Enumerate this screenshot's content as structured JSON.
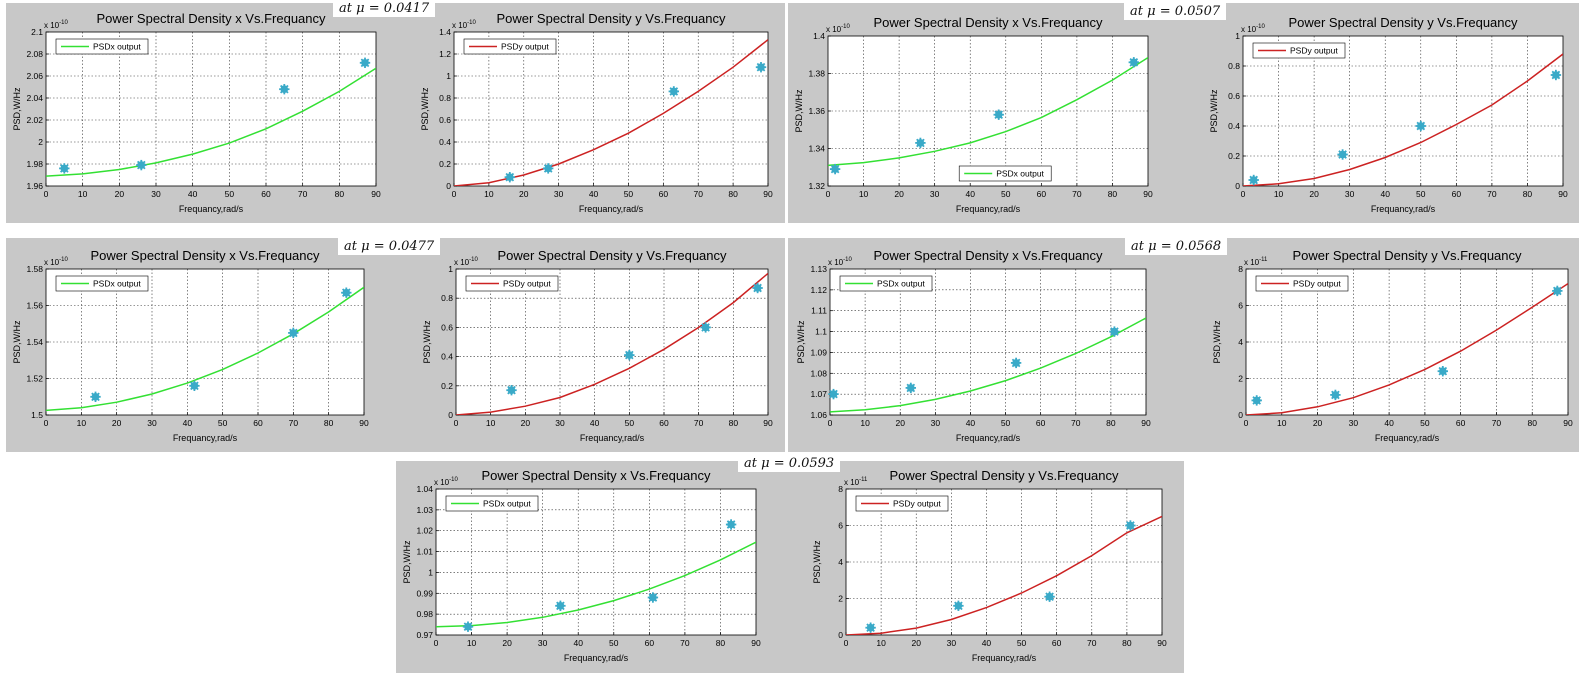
{
  "mu_labels": [
    {
      "text": "at μ = 0.0417"
    },
    {
      "text": "at μ = 0.0507"
    },
    {
      "text": "at μ = 0.0477"
    },
    {
      "text": "at μ = 0.0568"
    },
    {
      "text": "at μ = 0.0593"
    }
  ],
  "chart_data": [
    {
      "type": "line",
      "title": "Power Spectral Density x Vs.Frequancy",
      "xlabel": "Frequancy,rad/s",
      "ylabel": "PSD,W/Hz",
      "exponent": "x 10",
      "exponent_power": "-10",
      "xlim": [
        0,
        90
      ],
      "ylim": [
        1.96,
        2.1
      ],
      "xticks": [
        0,
        10,
        20,
        30,
        40,
        50,
        60,
        70,
        80,
        90
      ],
      "yticks": [
        1.96,
        1.98,
        2,
        2.02,
        2.04,
        2.06,
        2.08,
        2.1
      ],
      "ytick_labels": [
        "1.96",
        "1.98",
        "2",
        "2.02",
        "2.04",
        "2.06",
        "2.08",
        "2.1"
      ],
      "grid": true,
      "legend": {
        "label": "PSDx output",
        "position": "top-left"
      },
      "line_color": "#33e033",
      "marker_color": "#3aaac8",
      "fit": [
        [
          0,
          1.969
        ],
        [
          10,
          1.971
        ],
        [
          20,
          1.975
        ],
        [
          30,
          1.981
        ],
        [
          40,
          1.989
        ],
        [
          50,
          1.999
        ],
        [
          60,
          2.012
        ],
        [
          70,
          2.028
        ],
        [
          80,
          2.046
        ],
        [
          90,
          2.067
        ]
      ],
      "points": [
        [
          5,
          1.976
        ],
        [
          26,
          1.979
        ],
        [
          65,
          2.048
        ],
        [
          87,
          2.072
        ]
      ]
    },
    {
      "type": "line",
      "title": "Power Spectral Density y Vs.Frequancy",
      "xlabel": "Frequancy,rad/s",
      "ylabel": "PSD,W/Hz",
      "exponent": "x 10",
      "exponent_power": "-10",
      "xlim": [
        0,
        90
      ],
      "ylim": [
        0,
        1.4
      ],
      "xticks": [
        0,
        10,
        20,
        30,
        40,
        50,
        60,
        70,
        80,
        90
      ],
      "yticks": [
        0,
        0.2,
        0.4,
        0.6,
        0.8,
        1,
        1.2,
        1.4
      ],
      "ytick_labels": [
        "0",
        "0.2",
        "0.4",
        "0.6",
        "0.8",
        "1",
        "1.2",
        "1.4"
      ],
      "grid": true,
      "legend": {
        "label": "PSDy output",
        "position": "top-left"
      },
      "line_color": "#cc2222",
      "marker_color": "#3aaac8",
      "fit": [
        [
          0,
          0
        ],
        [
          10,
          0.03
        ],
        [
          20,
          0.1
        ],
        [
          30,
          0.2
        ],
        [
          40,
          0.33
        ],
        [
          50,
          0.48
        ],
        [
          60,
          0.66
        ],
        [
          70,
          0.86
        ],
        [
          80,
          1.08
        ],
        [
          90,
          1.33
        ]
      ],
      "points": [
        [
          16,
          0.08
        ],
        [
          27,
          0.16
        ],
        [
          63,
          0.86
        ],
        [
          88,
          1.08
        ]
      ]
    },
    {
      "type": "line",
      "title": "Power Spectral Density x Vs.Frequancy",
      "xlabel": "Frequancy,rad/s",
      "ylabel": "PSD,W/Hz",
      "exponent": "x 10",
      "exponent_power": "-10",
      "xlim": [
        0,
        90
      ],
      "ylim": [
        1.32,
        1.4
      ],
      "xticks": [
        0,
        10,
        20,
        30,
        40,
        50,
        60,
        70,
        80,
        90
      ],
      "yticks": [
        1.32,
        1.34,
        1.36,
        1.38,
        1.4
      ],
      "ytick_labels": [
        "1.32",
        "1.34",
        "1.36",
        "1.38",
        "1.4"
      ],
      "grid": true,
      "legend": {
        "label": "PSDx output",
        "position": "bottom-center"
      },
      "line_color": "#33e033",
      "marker_color": "#3aaac8",
      "fit": [
        [
          0,
          1.331
        ],
        [
          10,
          1.3325
        ],
        [
          20,
          1.335
        ],
        [
          30,
          1.3385
        ],
        [
          40,
          1.343
        ],
        [
          50,
          1.349
        ],
        [
          60,
          1.3565
        ],
        [
          70,
          1.366
        ],
        [
          80,
          1.3765
        ],
        [
          90,
          1.3885
        ]
      ],
      "points": [
        [
          2,
          1.329
        ],
        [
          26,
          1.343
        ],
        [
          48,
          1.358
        ],
        [
          86,
          1.386
        ]
      ]
    },
    {
      "type": "line",
      "title": "Power Spectral Density y Vs.Frequancy",
      "xlabel": "Frequancy,rad/s",
      "ylabel": "PSD,W/Hz",
      "exponent": "x 10",
      "exponent_power": "-10",
      "xlim": [
        0,
        90
      ],
      "ylim": [
        0,
        1
      ],
      "xticks": [
        0,
        10,
        20,
        30,
        40,
        50,
        60,
        70,
        80,
        90
      ],
      "yticks": [
        0,
        0.2,
        0.4,
        0.6,
        0.8,
        1
      ],
      "ytick_labels": [
        "0",
        "0.2",
        "0.4",
        "0.6",
        "0.8",
        "1"
      ],
      "grid": true,
      "legend": {
        "label": "PSDy output",
        "position": "top-left"
      },
      "line_color": "#cc2222",
      "marker_color": "#3aaac8",
      "fit": [
        [
          0,
          0
        ],
        [
          10,
          0.015
        ],
        [
          20,
          0.05
        ],
        [
          30,
          0.11
        ],
        [
          40,
          0.19
        ],
        [
          50,
          0.29
        ],
        [
          60,
          0.41
        ],
        [
          70,
          0.54
        ],
        [
          80,
          0.7
        ],
        [
          90,
          0.88
        ]
      ],
      "points": [
        [
          3,
          0.04
        ],
        [
          28,
          0.21
        ],
        [
          50,
          0.4
        ],
        [
          88,
          0.74
        ]
      ]
    },
    {
      "type": "line",
      "title": "Power Spectral Density x Vs.Frequancy",
      "xlabel": "Frequancy,rad/s",
      "ylabel": "PSD,W/Hz",
      "exponent": "x 10",
      "exponent_power": "-10",
      "xlim": [
        0,
        90
      ],
      "ylim": [
        1.5,
        1.58
      ],
      "xticks": [
        0,
        10,
        20,
        30,
        40,
        50,
        60,
        70,
        80,
        90
      ],
      "yticks": [
        1.5,
        1.52,
        1.54,
        1.56,
        1.58
      ],
      "ytick_labels": [
        "1.5",
        "1.52",
        "1.54",
        "1.56",
        "1.58"
      ],
      "grid": true,
      "legend": {
        "label": "PSDx output",
        "position": "top-left"
      },
      "line_color": "#33e033",
      "marker_color": "#3aaac8",
      "fit": [
        [
          0,
          1.5025
        ],
        [
          10,
          1.504
        ],
        [
          20,
          1.507
        ],
        [
          30,
          1.5115
        ],
        [
          40,
          1.5175
        ],
        [
          50,
          1.525
        ],
        [
          60,
          1.534
        ],
        [
          70,
          1.5445
        ],
        [
          80,
          1.5565
        ],
        [
          90,
          1.57
        ]
      ],
      "points": [
        [
          14,
          1.51
        ],
        [
          42,
          1.516
        ],
        [
          70,
          1.545
        ],
        [
          85,
          1.567
        ]
      ]
    },
    {
      "type": "line",
      "title": "Power Spectral Density y Vs.Frequancy",
      "xlabel": "Frequancy,rad/s",
      "ylabel": "PSD,W/Hz",
      "exponent": "x 10",
      "exponent_power": "-10",
      "xlim": [
        0,
        90
      ],
      "ylim": [
        0,
        1
      ],
      "xticks": [
        0,
        10,
        20,
        30,
        40,
        50,
        60,
        70,
        80,
        90
      ],
      "yticks": [
        0,
        0.2,
        0.4,
        0.6,
        0.8,
        1
      ],
      "ytick_labels": [
        "0",
        "0.2",
        "0.4",
        "0.6",
        "0.8",
        "1"
      ],
      "grid": true,
      "legend": {
        "label": "PSDy output",
        "position": "top-left"
      },
      "line_color": "#cc2222",
      "marker_color": "#3aaac8",
      "fit": [
        [
          0,
          0
        ],
        [
          10,
          0.02
        ],
        [
          20,
          0.06
        ],
        [
          30,
          0.12
        ],
        [
          40,
          0.21
        ],
        [
          50,
          0.32
        ],
        [
          60,
          0.45
        ],
        [
          70,
          0.6
        ],
        [
          80,
          0.77
        ],
        [
          90,
          0.97
        ]
      ],
      "points": [
        [
          16,
          0.17
        ],
        [
          50,
          0.41
        ],
        [
          72,
          0.6
        ],
        [
          87,
          0.87
        ]
      ]
    },
    {
      "type": "line",
      "title": "Power Spectral Density x Vs.Frequancy",
      "xlabel": "Frequancy,rad/s",
      "ylabel": "PSD,W/Hz",
      "exponent": "x 10",
      "exponent_power": "-10",
      "xlim": [
        0,
        90
      ],
      "ylim": [
        1.06,
        1.13
      ],
      "xticks": [
        0,
        10,
        20,
        30,
        40,
        50,
        60,
        70,
        80,
        90
      ],
      "yticks": [
        1.06,
        1.07,
        1.08,
        1.09,
        1.1,
        1.11,
        1.12,
        1.13
      ],
      "ytick_labels": [
        "1.06",
        "1.07",
        "1.08",
        "1.09",
        "1.1",
        "1.11",
        "1.12",
        "1.13"
      ],
      "grid": true,
      "legend": {
        "label": "PSDx output",
        "position": "top-left"
      },
      "line_color": "#33e033",
      "marker_color": "#3aaac8",
      "fit": [
        [
          0,
          1.0615
        ],
        [
          10,
          1.0625
        ],
        [
          20,
          1.0645
        ],
        [
          30,
          1.0675
        ],
        [
          40,
          1.0715
        ],
        [
          50,
          1.0765
        ],
        [
          60,
          1.0825
        ],
        [
          70,
          1.0895
        ],
        [
          80,
          1.0975
        ],
        [
          90,
          1.1065
        ]
      ],
      "points": [
        [
          1,
          1.07
        ],
        [
          23,
          1.073
        ],
        [
          53,
          1.085
        ],
        [
          81,
          1.1
        ]
      ]
    },
    {
      "type": "line",
      "title": "Power Spectral Density y Vs.Frequancy",
      "xlabel": "Frequancy,rad/s",
      "ylabel": "PSD,W/Hz",
      "exponent": "x 10",
      "exponent_power": "-11",
      "xlim": [
        0,
        90
      ],
      "ylim": [
        0,
        8
      ],
      "xticks": [
        0,
        10,
        20,
        30,
        40,
        50,
        60,
        70,
        80,
        90
      ],
      "yticks": [
        0,
        2,
        4,
        6,
        8
      ],
      "ytick_labels": [
        "0",
        "2",
        "4",
        "6",
        "8"
      ],
      "grid": true,
      "legend": {
        "label": "PSDy output",
        "position": "top-left"
      },
      "line_color": "#cc2222",
      "marker_color": "#3aaac8",
      "fit": [
        [
          0,
          0
        ],
        [
          10,
          0.12
        ],
        [
          20,
          0.45
        ],
        [
          30,
          0.95
        ],
        [
          40,
          1.65
        ],
        [
          50,
          2.5
        ],
        [
          60,
          3.5
        ],
        [
          70,
          4.65
        ],
        [
          80,
          5.9
        ],
        [
          90,
          7.2
        ]
      ],
      "points": [
        [
          3,
          0.8
        ],
        [
          25,
          1.1
        ],
        [
          55,
          2.4
        ],
        [
          87,
          6.8
        ]
      ]
    },
    {
      "type": "line",
      "title": "Power Spectral Density x Vs.Frequancy",
      "xlabel": "Frequancy,rad/s",
      "ylabel": "PSD,W/Hz",
      "exponent": "x 10",
      "exponent_power": "-10",
      "xlim": [
        0,
        90
      ],
      "ylim": [
        0.97,
        1.04
      ],
      "xticks": [
        0,
        10,
        20,
        30,
        40,
        50,
        60,
        70,
        80,
        90
      ],
      "yticks": [
        0.97,
        0.98,
        0.99,
        1,
        1.01,
        1.02,
        1.03,
        1.04
      ],
      "ytick_labels": [
        "0.97",
        "0.98",
        "0.99",
        "1",
        "1.01",
        "1.02",
        "1.03",
        "1.04"
      ],
      "grid": true,
      "legend": {
        "label": "PSDx output",
        "position": "top-left"
      },
      "line_color": "#33e033",
      "marker_color": "#3aaac8",
      "fit": [
        [
          0,
          0.974
        ],
        [
          10,
          0.9745
        ],
        [
          20,
          0.976
        ],
        [
          30,
          0.9785
        ],
        [
          40,
          0.982
        ],
        [
          50,
          0.9865
        ],
        [
          60,
          0.992
        ],
        [
          70,
          0.9985
        ],
        [
          80,
          1.006
        ],
        [
          90,
          1.0145
        ]
      ],
      "points": [
        [
          9,
          0.974
        ],
        [
          35,
          0.984
        ],
        [
          61,
          0.988
        ],
        [
          83,
          1.023
        ]
      ]
    },
    {
      "type": "line",
      "title": "Power Spectral Density y Vs.Frequancy",
      "xlabel": "Frequancy,rad/s",
      "ylabel": "PSD,W/Hz",
      "exponent": "x 10",
      "exponent_power": "-11",
      "xlim": [
        0,
        90
      ],
      "ylim": [
        0,
        8
      ],
      "xticks": [
        0,
        10,
        20,
        30,
        40,
        50,
        60,
        70,
        80,
        90
      ],
      "yticks": [
        0,
        2,
        4,
        6,
        8
      ],
      "ytick_labels": [
        "0",
        "2",
        "4",
        "6",
        "8"
      ],
      "grid": true,
      "legend": {
        "label": "PSDy output",
        "position": "top-left"
      },
      "line_color": "#cc2222",
      "marker_color": "#3aaac8",
      "fit": [
        [
          0,
          0
        ],
        [
          10,
          0.1
        ],
        [
          20,
          0.38
        ],
        [
          30,
          0.85
        ],
        [
          40,
          1.5
        ],
        [
          50,
          2.3
        ],
        [
          60,
          3.25
        ],
        [
          70,
          4.35
        ],
        [
          80,
          5.6
        ],
        [
          90,
          6.5
        ]
      ],
      "points": [
        [
          7,
          0.4
        ],
        [
          32,
          1.6
        ],
        [
          58,
          2.1
        ],
        [
          81,
          6
        ]
      ]
    }
  ]
}
